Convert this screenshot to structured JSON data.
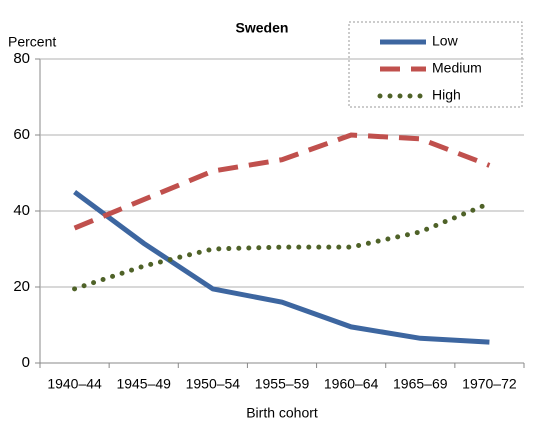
{
  "chart_data": {
    "type": "line",
    "title": "Sweden",
    "y_label": "Percent",
    "x_label": "Birth cohort",
    "categories": [
      "1940–44",
      "1945–49",
      "1950–54",
      "1955–59",
      "1960–64",
      "1965–69",
      "1970–72"
    ],
    "series": [
      {
        "name": "Low",
        "color": "#3d66a0",
        "style": "solid",
        "values": [
          45,
          31.5,
          19.5,
          16,
          9.5,
          6.5,
          5.5
        ]
      },
      {
        "name": "Medium",
        "color": "#c0504d",
        "style": "dashed",
        "values": [
          35.5,
          43,
          50.5,
          53.5,
          60,
          59,
          52
        ]
      },
      {
        "name": "High",
        "color": "#4f6228",
        "style": "dotted",
        "values": [
          19.5,
          25.5,
          30,
          30.5,
          30.5,
          34.5,
          42
        ]
      }
    ],
    "ylim": [
      0,
      80
    ],
    "yticks": [
      0,
      20,
      40,
      60,
      80
    ],
    "grid": true,
    "legend": "upper right"
  }
}
